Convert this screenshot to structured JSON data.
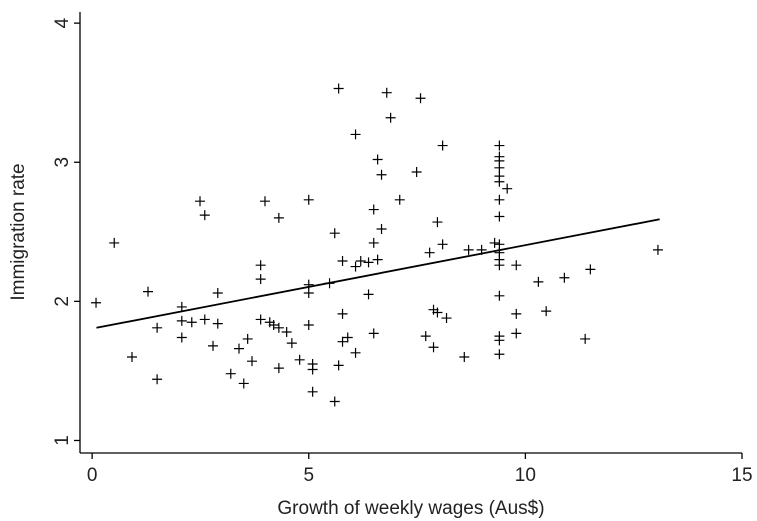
{
  "chart_data": {
    "type": "scatter",
    "x_label": "Growth of weekly wages (Aus$)",
    "y_label": "Immigration rate",
    "xlim": [
      -0.28,
      15
    ],
    "ylim": [
      0.91,
      4.08
    ],
    "xticks": [
      0,
      5,
      10,
      15
    ],
    "yticks": [
      1,
      2,
      3,
      4
    ],
    "color": "#000000",
    "x": [
      0.09,
      0.51,
      0.92,
      1.29,
      1.5,
      1.5,
      2.07,
      2.07,
      2.07,
      2.3,
      2.49,
      2.6,
      2.6,
      2.9,
      2.9,
      2.79,
      3.2,
      3.39,
      3.5,
      3.59,
      3.69,
      3.89,
      3.89,
      3.99,
      3.89,
      4.1,
      4.19,
      4.31,
      4.31,
      4.31,
      4.49,
      4.61,
      4.79,
      5.0,
      5.0,
      5.0,
      5.0,
      5.09,
      5.09,
      5.09,
      5.48,
      5.6,
      5.6,
      5.69,
      5.69,
      5.78,
      5.78,
      5.78,
      5.9,
      6.08,
      6.08,
      6.2,
      6.08,
      6.38,
      6.38,
      6.5,
      6.5,
      6.5,
      6.59,
      6.59,
      6.68,
      6.68,
      6.8,
      6.89,
      7.1,
      7.49,
      7.58,
      7.7,
      7.79,
      7.88,
      7.88,
      7.97,
      7.97,
      8.09,
      8.09,
      8.18,
      8.59,
      8.69,
      8.99,
      9.29,
      9.4,
      9.4,
      9.4,
      9.4,
      9.4,
      9.4,
      9.4,
      9.4,
      9.4,
      9.4,
      9.4,
      9.4,
      9.4,
      9.4,
      9.4,
      9.4,
      9.58,
      9.79,
      9.79,
      9.79,
      10.3,
      10.48,
      10.9,
      11.38,
      11.5,
      13.06
    ],
    "y": [
      1.99,
      2.42,
      1.6,
      2.07,
      1.81,
      1.44,
      1.96,
      1.86,
      1.74,
      1.85,
      2.72,
      2.62,
      1.87,
      2.06,
      1.84,
      1.68,
      1.48,
      1.66,
      1.41,
      1.73,
      1.57,
      2.26,
      2.16,
      2.72,
      1.87,
      1.85,
      1.83,
      2.6,
      1.52,
      1.81,
      1.78,
      1.7,
      1.58,
      2.73,
      2.12,
      2.06,
      1.83,
      1.55,
      1.51,
      1.35,
      2.13,
      2.49,
      1.28,
      3.53,
      1.54,
      2.29,
      1.91,
      1.71,
      1.74,
      3.2,
      2.25,
      2.29,
      1.63,
      2.28,
      2.05,
      2.66,
      2.42,
      1.77,
      3.02,
      2.3,
      2.91,
      2.52,
      3.5,
      3.32,
      2.73,
      2.93,
      3.46,
      1.75,
      2.35,
      1.94,
      1.67,
      2.57,
      1.92,
      3.12,
      2.41,
      1.88,
      1.6,
      2.37,
      2.37,
      2.42,
      3.12,
      3.04,
      3.01,
      2.96,
      2.9,
      2.86,
      2.73,
      2.61,
      2.41,
      2.35,
      2.3,
      2.26,
      2.04,
      1.75,
      1.72,
      1.62,
      2.81,
      2.26,
      1.91,
      1.77,
      2.14,
      1.93,
      2.17,
      1.73,
      2.23,
      2.37
    ],
    "fit_line": {
      "x": [
        0.1,
        13.1
      ],
      "y": [
        1.81,
        2.59
      ]
    }
  }
}
